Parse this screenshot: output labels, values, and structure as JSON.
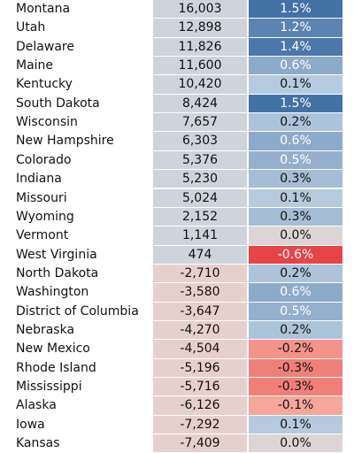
{
  "chart_data": {
    "type": "table",
    "rows": [
      {
        "state": "Montana",
        "value": "16,003",
        "pct": "1.5%"
      },
      {
        "state": "Utah",
        "value": "12,898",
        "pct": "1.2%"
      },
      {
        "state": "Delaware",
        "value": "11,826",
        "pct": "1.4%"
      },
      {
        "state": "Maine",
        "value": "11,600",
        "pct": "0.6%"
      },
      {
        "state": "Kentucky",
        "value": "10,420",
        "pct": "0.1%"
      },
      {
        "state": "South Dakota",
        "value": "8,424",
        "pct": "1.5%"
      },
      {
        "state": "Wisconsin",
        "value": "7,657",
        "pct": "0.2%"
      },
      {
        "state": "New Hampshire",
        "value": "6,303",
        "pct": "0.6%"
      },
      {
        "state": "Colorado",
        "value": "5,376",
        "pct": "0.5%"
      },
      {
        "state": "Indiana",
        "value": "5,230",
        "pct": "0.3%"
      },
      {
        "state": "Missouri",
        "value": "5,024",
        "pct": "0.1%"
      },
      {
        "state": "Wyoming",
        "value": "2,152",
        "pct": "0.3%"
      },
      {
        "state": "Vermont",
        "value": "1,141",
        "pct": "0.0%"
      },
      {
        "state": "West Virginia",
        "value": "474",
        "pct": "-0.6%"
      },
      {
        "state": "North Dakota",
        "value": "-2,710",
        "pct": "0.2%"
      },
      {
        "state": "Washington",
        "value": "-3,580",
        "pct": "0.6%"
      },
      {
        "state": "District of Columbia",
        "value": "-3,647",
        "pct": "0.5%"
      },
      {
        "state": "Nebraska",
        "value": "-4,270",
        "pct": "0.2%"
      },
      {
        "state": "New Mexico",
        "value": "-4,504",
        "pct": "-0.2%"
      },
      {
        "state": "Rhode Island",
        "value": "-5,196",
        "pct": "-0.3%"
      },
      {
        "state": "Mississippi",
        "value": "-5,716",
        "pct": "-0.3%"
      },
      {
        "state": "Alaska",
        "value": "-6,126",
        "pct": "-0.1%"
      },
      {
        "state": "Iowa",
        "value": "-7,292",
        "pct": "0.1%"
      },
      {
        "state": "Kansas",
        "value": "-7,409",
        "pct": "0.0%"
      }
    ]
  }
}
